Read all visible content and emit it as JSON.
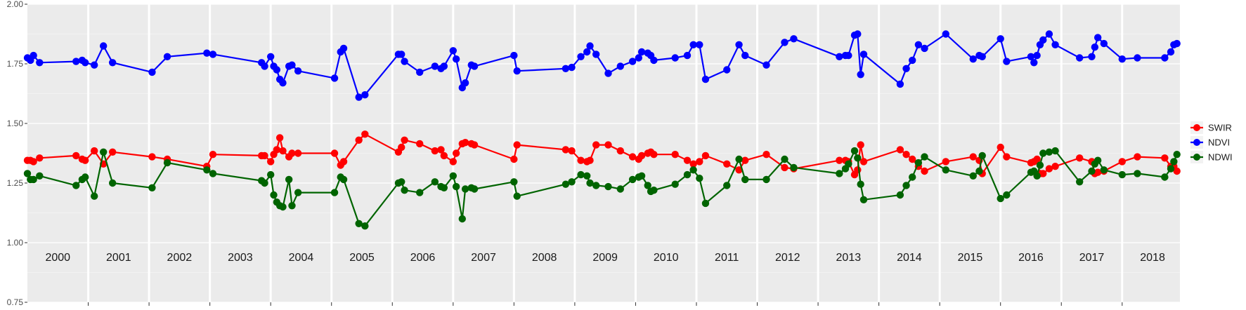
{
  "chart_data": {
    "type": "line",
    "title": "",
    "xlabel": "",
    "ylabel": "",
    "xlim": [
      2000.0,
      2018.95
    ],
    "ylim": [
      0.75,
      2.0
    ],
    "y_ticks": [
      0.75,
      1.0,
      1.25,
      1.5,
      1.75,
      2.0
    ],
    "y_tick_labels": [
      "0.75",
      "1.00",
      "1.25",
      "1.50",
      "1.75",
      "2.00"
    ],
    "year_labels": [
      "2000",
      "2001",
      "2002",
      "2003",
      "2004",
      "2005",
      "2006",
      "2007",
      "2008",
      "2009",
      "2010",
      "2011",
      "2012",
      "2013",
      "2014",
      "2015",
      "2016",
      "2017",
      "2018"
    ],
    "grid": true,
    "legend_position": "right",
    "series": [
      {
        "name": "SWIR",
        "color": "#ff0000",
        "x": [
          2000.0,
          2000.05,
          2000.1,
          2000.2,
          2000.8,
          2000.9,
          2000.95,
          2001.1,
          2001.25,
          2001.4,
          2002.05,
          2002.3,
          2002.95,
          2003.05,
          2003.85,
          2003.9,
          2004.0,
          2004.05,
          2004.1,
          2004.15,
          2004.2,
          2004.3,
          2004.35,
          2004.45,
          2005.05,
          2005.15,
          2005.2,
          2005.45,
          2005.55,
          2006.1,
          2006.15,
          2006.2,
          2006.45,
          2006.7,
          2006.8,
          2006.85,
          2007.0,
          2007.05,
          2007.15,
          2007.2,
          2007.3,
          2007.35,
          2008.0,
          2008.05,
          2008.85,
          2008.95,
          2009.1,
          2009.2,
          2009.25,
          2009.35,
          2009.55,
          2009.75,
          2009.95,
          2010.05,
          2010.1,
          2010.2,
          2010.25,
          2010.3,
          2010.65,
          2010.85,
          2010.95,
          2011.05,
          2011.15,
          2011.5,
          2011.7,
          2011.8,
          2012.15,
          2012.45,
          2012.6,
          2013.35,
          2013.45,
          2013.5,
          2013.6,
          2013.65,
          2013.7,
          2013.75,
          2014.35,
          2014.45,
          2014.55,
          2014.65,
          2014.75,
          2015.1,
          2015.55,
          2015.65,
          2015.7,
          2016.0,
          2016.1,
          2016.5,
          2016.55,
          2016.6,
          2016.65,
          2016.7,
          2016.8,
          2016.9,
          2017.3,
          2017.5,
          2017.55,
          2017.6,
          2017.7,
          2018.0,
          2018.25,
          2018.7,
          2018.8,
          2018.85,
          2018.9
        ],
        "values": [
          1.345,
          1.345,
          1.34,
          1.355,
          1.365,
          1.35,
          1.345,
          1.385,
          1.33,
          1.38,
          1.36,
          1.35,
          1.32,
          1.37,
          1.365,
          1.365,
          1.34,
          1.37,
          1.39,
          1.44,
          1.385,
          1.36,
          1.375,
          1.375,
          1.375,
          1.325,
          1.34,
          1.43,
          1.455,
          1.38,
          1.4,
          1.43,
          1.415,
          1.385,
          1.39,
          1.365,
          1.34,
          1.375,
          1.415,
          1.42,
          1.415,
          1.41,
          1.35,
          1.41,
          1.39,
          1.385,
          1.345,
          1.34,
          1.345,
          1.41,
          1.41,
          1.385,
          1.36,
          1.35,
          1.365,
          1.375,
          1.38,
          1.37,
          1.37,
          1.345,
          1.33,
          1.34,
          1.365,
          1.33,
          1.305,
          1.345,
          1.37,
          1.315,
          1.31,
          1.345,
          1.345,
          1.34,
          1.285,
          1.305,
          1.41,
          1.34,
          1.39,
          1.37,
          1.35,
          1.32,
          1.3,
          1.34,
          1.36,
          1.345,
          1.29,
          1.4,
          1.36,
          1.335,
          1.34,
          1.35,
          1.29,
          1.29,
          1.31,
          1.32,
          1.355,
          1.34,
          1.29,
          1.295,
          1.3,
          1.34,
          1.36,
          1.355,
          1.32,
          1.32,
          1.3
        ]
      },
      {
        "name": "NDVI",
        "color": "#0000ff",
        "x": [
          2000.0,
          2000.05,
          2000.1,
          2000.2,
          2000.8,
          2000.9,
          2000.95,
          2001.1,
          2001.25,
          2001.4,
          2002.05,
          2002.3,
          2002.95,
          2003.05,
          2003.85,
          2003.9,
          2004.0,
          2004.05,
          2004.1,
          2004.15,
          2004.2,
          2004.3,
          2004.35,
          2004.45,
          2005.05,
          2005.15,
          2005.2,
          2005.45,
          2005.55,
          2006.1,
          2006.15,
          2006.2,
          2006.45,
          2006.7,
          2006.8,
          2006.85,
          2007.0,
          2007.05,
          2007.15,
          2007.2,
          2007.3,
          2007.35,
          2008.0,
          2008.05,
          2008.85,
          2008.95,
          2009.1,
          2009.2,
          2009.25,
          2009.35,
          2009.55,
          2009.75,
          2009.95,
          2010.05,
          2010.1,
          2010.2,
          2010.25,
          2010.3,
          2010.65,
          2010.85,
          2010.95,
          2011.05,
          2011.15,
          2011.5,
          2011.7,
          2011.8,
          2012.15,
          2012.45,
          2012.6,
          2013.35,
          2013.45,
          2013.5,
          2013.6,
          2013.65,
          2013.7,
          2013.75,
          2014.35,
          2014.45,
          2014.55,
          2014.65,
          2014.75,
          2015.1,
          2015.55,
          2015.65,
          2015.7,
          2016.0,
          2016.1,
          2016.5,
          2016.55,
          2016.6,
          2016.65,
          2016.7,
          2016.8,
          2016.9,
          2017.3,
          2017.5,
          2017.55,
          2017.6,
          2017.7,
          2018.0,
          2018.25,
          2018.7,
          2018.8,
          2018.85,
          2018.9
        ],
        "values": [
          1.775,
          1.765,
          1.785,
          1.755,
          1.76,
          1.765,
          1.755,
          1.745,
          1.825,
          1.755,
          1.715,
          1.78,
          1.795,
          1.79,
          1.755,
          1.74,
          1.78,
          1.74,
          1.725,
          1.685,
          1.67,
          1.74,
          1.745,
          1.72,
          1.69,
          1.8,
          1.815,
          1.61,
          1.62,
          1.79,
          1.79,
          1.76,
          1.715,
          1.74,
          1.73,
          1.74,
          1.805,
          1.77,
          1.65,
          1.67,
          1.745,
          1.74,
          1.785,
          1.72,
          1.73,
          1.735,
          1.78,
          1.8,
          1.825,
          1.79,
          1.71,
          1.74,
          1.76,
          1.775,
          1.8,
          1.795,
          1.785,
          1.765,
          1.775,
          1.785,
          1.83,
          1.83,
          1.685,
          1.725,
          1.83,
          1.785,
          1.745,
          1.84,
          1.855,
          1.78,
          1.785,
          1.785,
          1.87,
          1.875,
          1.705,
          1.79,
          1.665,
          1.73,
          1.765,
          1.83,
          1.815,
          1.875,
          1.77,
          1.785,
          1.78,
          1.855,
          1.76,
          1.78,
          1.755,
          1.785,
          1.83,
          1.85,
          1.875,
          1.83,
          1.775,
          1.78,
          1.82,
          1.86,
          1.835,
          1.77,
          1.775,
          1.775,
          1.8,
          1.83,
          1.835
        ]
      },
      {
        "name": "NDWI",
        "color": "#006400",
        "x": [
          2000.0,
          2000.05,
          2000.1,
          2000.2,
          2000.8,
          2000.9,
          2000.95,
          2001.1,
          2001.25,
          2001.4,
          2002.05,
          2002.3,
          2002.95,
          2003.05,
          2003.85,
          2003.9,
          2004.0,
          2004.05,
          2004.1,
          2004.15,
          2004.2,
          2004.3,
          2004.35,
          2004.45,
          2005.05,
          2005.15,
          2005.2,
          2005.45,
          2005.55,
          2006.1,
          2006.15,
          2006.2,
          2006.45,
          2006.7,
          2006.8,
          2006.85,
          2007.0,
          2007.05,
          2007.15,
          2007.2,
          2007.3,
          2007.35,
          2008.0,
          2008.05,
          2008.85,
          2008.95,
          2009.1,
          2009.2,
          2009.25,
          2009.35,
          2009.55,
          2009.75,
          2009.95,
          2010.05,
          2010.1,
          2010.2,
          2010.25,
          2010.3,
          2010.65,
          2010.85,
          2010.95,
          2011.05,
          2011.15,
          2011.5,
          2011.7,
          2011.8,
          2012.15,
          2012.45,
          2012.6,
          2013.35,
          2013.45,
          2013.5,
          2013.6,
          2013.65,
          2013.7,
          2013.75,
          2014.35,
          2014.45,
          2014.55,
          2014.65,
          2014.75,
          2015.1,
          2015.55,
          2015.65,
          2015.7,
          2016.0,
          2016.1,
          2016.5,
          2016.55,
          2016.6,
          2016.65,
          2016.7,
          2016.8,
          2016.9,
          2017.3,
          2017.5,
          2017.55,
          2017.6,
          2017.7,
          2018.0,
          2018.25,
          2018.7,
          2018.8,
          2018.85,
          2018.9
        ],
        "values": [
          1.29,
          1.265,
          1.265,
          1.28,
          1.24,
          1.265,
          1.275,
          1.195,
          1.38,
          1.25,
          1.23,
          1.335,
          1.305,
          1.29,
          1.26,
          1.25,
          1.285,
          1.2,
          1.17,
          1.155,
          1.15,
          1.265,
          1.155,
          1.21,
          1.21,
          1.275,
          1.265,
          1.08,
          1.07,
          1.25,
          1.255,
          1.22,
          1.21,
          1.255,
          1.235,
          1.23,
          1.28,
          1.235,
          1.1,
          1.225,
          1.23,
          1.225,
          1.255,
          1.195,
          1.245,
          1.255,
          1.285,
          1.28,
          1.25,
          1.24,
          1.235,
          1.225,
          1.265,
          1.275,
          1.28,
          1.24,
          1.215,
          1.22,
          1.245,
          1.285,
          1.305,
          1.27,
          1.165,
          1.24,
          1.35,
          1.265,
          1.265,
          1.35,
          1.315,
          1.29,
          1.31,
          1.33,
          1.385,
          1.355,
          1.245,
          1.18,
          1.2,
          1.24,
          1.275,
          1.335,
          1.36,
          1.305,
          1.28,
          1.3,
          1.365,
          1.185,
          1.2,
          1.295,
          1.3,
          1.28,
          1.325,
          1.375,
          1.38,
          1.385,
          1.255,
          1.3,
          1.33,
          1.345,
          1.305,
          1.285,
          1.29,
          1.275,
          1.31,
          1.34,
          1.37
        ]
      }
    ]
  }
}
